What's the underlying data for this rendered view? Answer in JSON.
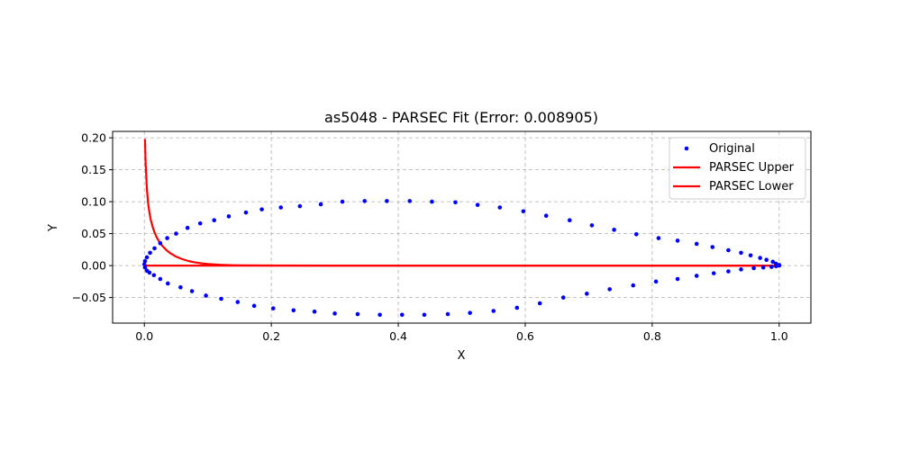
{
  "chart_data": {
    "type": "scatter",
    "title": "as5048 - PARSEC Fit (Error: 0.008905)",
    "xlabel": "X",
    "ylabel": "Y",
    "xlim": [
      -0.05,
      1.05
    ],
    "ylim": [
      -0.09,
      0.21
    ],
    "xticks": [
      0.0,
      0.2,
      0.4,
      0.6,
      0.8,
      1.0
    ],
    "xtick_labels": [
      "0.0",
      "0.2",
      "0.4",
      "0.6",
      "0.8",
      "1.0"
    ],
    "yticks": [
      -0.05,
      0.0,
      0.05,
      0.1,
      0.15,
      0.2
    ],
    "ytick_labels": [
      "−0.05",
      "0.00",
      "0.05",
      "0.10",
      "0.15",
      "0.20"
    ],
    "grid": true,
    "legend_position": "top-right",
    "series": [
      {
        "name": "Original",
        "kind": "scatter",
        "color": "#0000ff",
        "x": [
          1.0,
          0.995,
          0.99,
          0.98,
          0.97,
          0.955,
          0.94,
          0.92,
          0.895,
          0.87,
          0.84,
          0.81,
          0.775,
          0.74,
          0.705,
          0.67,
          0.633,
          0.597,
          0.56,
          0.525,
          0.49,
          0.453,
          0.418,
          0.382,
          0.347,
          0.312,
          0.278,
          0.245,
          0.215,
          0.185,
          0.16,
          0.133,
          0.11,
          0.088,
          0.068,
          0.05,
          0.036,
          0.025,
          0.016,
          0.009,
          0.004,
          0.001,
          0.0,
          0.001,
          0.004,
          0.008,
          0.015,
          0.025,
          0.037,
          0.057,
          0.075,
          0.097,
          0.121,
          0.147,
          0.173,
          0.203,
          0.235,
          0.268,
          0.3,
          0.336,
          0.371,
          0.406,
          0.441,
          0.478,
          0.513,
          0.55,
          0.587,
          0.623,
          0.66,
          0.697,
          0.733,
          0.77,
          0.806,
          0.84,
          0.87,
          0.897,
          0.92,
          0.94,
          0.96,
          0.975,
          0.988,
          0.995,
          1.0
        ],
        "y": [
          0.001,
          0.003,
          0.006,
          0.009,
          0.012,
          0.016,
          0.02,
          0.024,
          0.029,
          0.034,
          0.039,
          0.043,
          0.049,
          0.056,
          0.063,
          0.071,
          0.078,
          0.085,
          0.091,
          0.095,
          0.099,
          0.1,
          0.101,
          0.101,
          0.101,
          0.1,
          0.096,
          0.093,
          0.091,
          0.088,
          0.083,
          0.077,
          0.071,
          0.066,
          0.059,
          0.05,
          0.043,
          0.035,
          0.027,
          0.02,
          0.013,
          0.007,
          0.002,
          -0.003,
          -0.008,
          -0.011,
          -0.015,
          -0.021,
          -0.028,
          -0.034,
          -0.04,
          -0.047,
          -0.052,
          -0.057,
          -0.063,
          -0.067,
          -0.07,
          -0.072,
          -0.075,
          -0.076,
          -0.077,
          -0.077,
          -0.077,
          -0.076,
          -0.074,
          -0.071,
          -0.066,
          -0.059,
          -0.05,
          -0.044,
          -0.037,
          -0.031,
          -0.025,
          -0.021,
          -0.016,
          -0.012,
          -0.009,
          -0.006,
          -0.004,
          -0.003,
          -0.002,
          -0.001,
          0.0
        ]
      },
      {
        "name": "PARSEC Upper",
        "kind": "line",
        "color": "#ff0000",
        "x": [
          0.001,
          0.002,
          0.004,
          0.006,
          0.008,
          0.01,
          0.013,
          0.016,
          0.02,
          0.025,
          0.03,
          0.035,
          0.04,
          0.05,
          0.06,
          0.07,
          0.08,
          0.09,
          0.1,
          0.12,
          0.14,
          0.16,
          0.2,
          0.3,
          0.4,
          0.5,
          0.6,
          0.7,
          0.8,
          0.9,
          1.0
        ],
        "y": [
          0.198,
          0.16,
          0.12,
          0.097,
          0.083,
          0.072,
          0.061,
          0.052,
          0.043,
          0.035,
          0.029,
          0.024,
          0.02,
          0.014,
          0.01,
          0.007,
          0.005,
          0.0035,
          0.0025,
          0.0012,
          0.0006,
          0.0003,
          0.0001,
          0.0,
          0.0,
          0.0,
          0.0,
          0.0,
          0.0,
          0.0,
          0.0
        ]
      },
      {
        "name": "PARSEC Lower",
        "kind": "line",
        "color": "#ff0000",
        "x": [
          0.0,
          0.1,
          0.2,
          0.3,
          0.4,
          0.5,
          0.6,
          0.7,
          0.8,
          0.9,
          1.0
        ],
        "y": [
          0.0,
          0.0,
          0.0,
          0.0,
          0.0,
          0.0,
          0.0,
          0.0,
          0.0,
          0.0,
          0.0
        ]
      }
    ]
  }
}
